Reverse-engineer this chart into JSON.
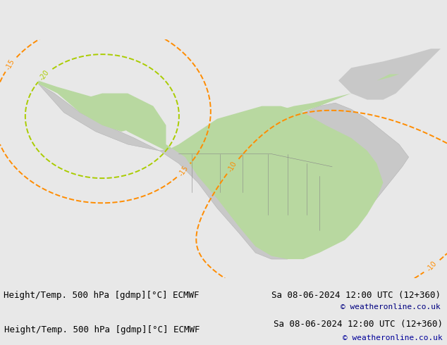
{
  "title_left": "Height/Temp. 500 hPa [gdmp][°C] ECMWF",
  "title_right": "Sa 08-06-2024 12:00 UTC (12+360)",
  "copyright": "© weatheronline.co.uk",
  "bg_color": "#e8e8e8",
  "land_color": "#c8c8c8",
  "green_land_color": "#b8d8a0",
  "height_contour_color": "#000000",
  "temp_neg10_color": "#ff8c00",
  "temp_neg15_color": "#ff8c00",
  "temp_neg20_color": "#aacc00",
  "temp_5_color": "#cc0000",
  "font_size_title": 9,
  "font_size_labels": 7.5,
  "font_size_copyright": 8
}
